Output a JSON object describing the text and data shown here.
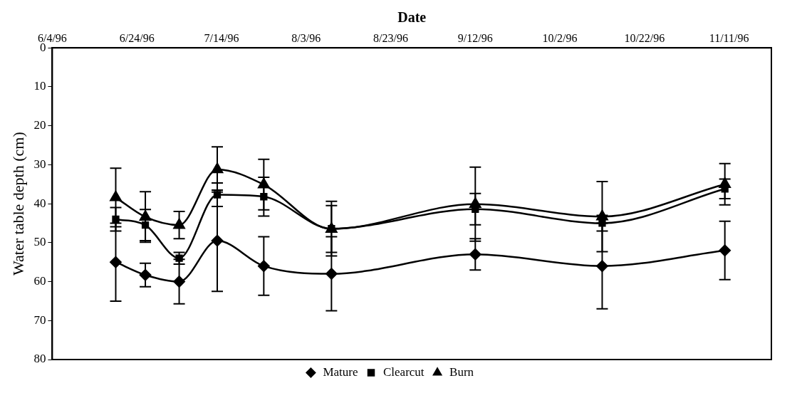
{
  "chart_data": {
    "type": "line",
    "xlabel": "Date",
    "ylabel": "Water table depth (cm)",
    "xlim": [
      "1996-06-04",
      "1996-11-21"
    ],
    "xticks": [
      {
        "value": "1996-06-04",
        "label": "6/4/96"
      },
      {
        "value": "1996-06-24",
        "label": "6/24/96"
      },
      {
        "value": "1996-07-14",
        "label": "7/14/96"
      },
      {
        "value": "1996-08-03",
        "label": "8/3/96"
      },
      {
        "value": "1996-08-23",
        "label": "8/23/96"
      },
      {
        "value": "1996-09-12",
        "label": "9/12/96"
      },
      {
        "value": "1996-10-02",
        "label": "10/2/96"
      },
      {
        "value": "1996-10-22",
        "label": "10/22/96"
      },
      {
        "value": "1996-11-11",
        "label": "11/11/96"
      }
    ],
    "ylim": [
      80,
      0
    ],
    "yticks": [
      0,
      10,
      20,
      30,
      40,
      50,
      60,
      70,
      80
    ],
    "grid": false,
    "legend": "bottom",
    "line_style": "solid",
    "x": [
      "1996-06-19",
      "1996-06-26",
      "1996-07-04",
      "1996-07-13",
      "1996-07-24",
      "1996-08-09",
      "1996-09-12",
      "1996-10-12",
      "1996-11-10"
    ],
    "series": [
      {
        "name": "Mature",
        "color": "#000000",
        "marker": "diamond",
        "values": [
          55,
          58.3,
          60,
          49.5,
          56,
          58,
          53,
          56,
          52
        ],
        "errors": [
          10,
          3,
          5.7,
          13,
          7.5,
          9.5,
          4,
          11,
          7.5
        ]
      },
      {
        "name": "Clearcut",
        "color": "#000000",
        "marker": "square",
        "values": [
          44,
          45.5,
          54,
          37.7,
          38.2,
          46.4,
          41.4,
          45,
          36.2
        ],
        "errors": [
          3,
          4,
          1.5,
          3,
          5,
          7,
          4,
          2,
          2.5
        ]
      },
      {
        "name": "Burn",
        "color": "#000000",
        "marker": "triangle",
        "values": [
          38.4,
          43.4,
          45.5,
          31.2,
          35.1,
          46.5,
          40.1,
          43.3,
          35
        ],
        "errors": [
          7.5,
          6.5,
          3.5,
          5.8,
          6.5,
          6,
          9.5,
          9,
          5.3
        ]
      }
    ]
  }
}
